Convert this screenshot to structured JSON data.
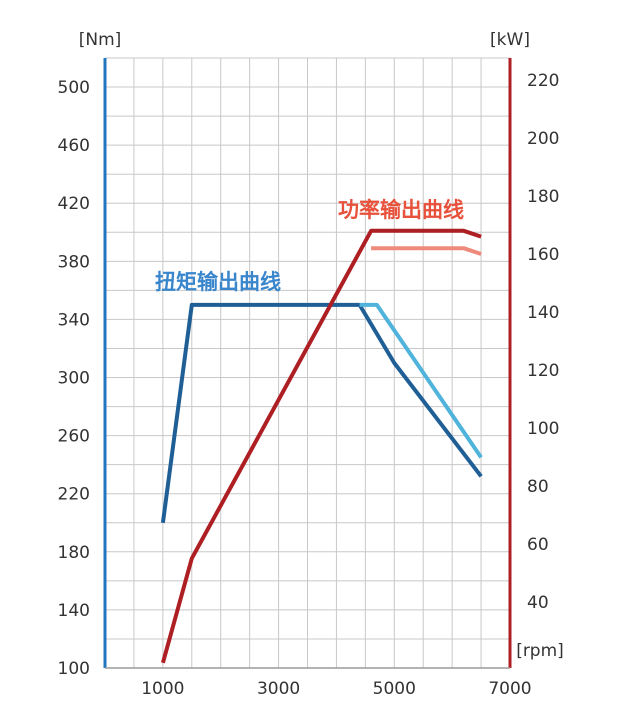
{
  "chart_data": {
    "type": "line",
    "left_axis_unit": "[Nm]",
    "right_axis_unit": "[kW]",
    "x_unit": "[rpm]",
    "x_ticks": [
      "1000",
      "3000",
      "5000",
      "7000"
    ],
    "x_range": [
      0,
      7000
    ],
    "y_left_ticks": [
      "100",
      "140",
      "180",
      "220",
      "260",
      "300",
      "340",
      "380",
      "420",
      "460",
      "500"
    ],
    "y_left_range": [
      100,
      520
    ],
    "y_right_ticks": [
      "40",
      "60",
      "80",
      "100",
      "120",
      "140",
      "160",
      "180",
      "200",
      "220"
    ],
    "y_right_range": [
      17.2,
      227.6
    ],
    "grid": true,
    "annotations": {
      "torque": "扭矩输出曲线",
      "power": "功率输出曲线"
    },
    "series": [
      {
        "axis": "left",
        "color": "#1f5f96",
        "x": [
          1000,
          1500,
          4400,
          5000,
          6500
        ],
        "y": [
          200,
          350,
          350,
          310,
          232
        ]
      },
      {
        "axis": "left",
        "color": "#4fb3dc",
        "x": [
          4400,
          4700,
          6500
        ],
        "y": [
          350,
          350,
          245
        ]
      },
      {
        "axis": "right",
        "color": "#ae1f24",
        "x": [
          1000,
          1500,
          4600,
          6200,
          6500
        ],
        "y": [
          19,
          55,
          168,
          168,
          166
        ]
      },
      {
        "axis": "right",
        "color": "#ee8a7c",
        "x": [
          4600,
          6200,
          6500
        ],
        "y": [
          162,
          162,
          160
        ]
      }
    ],
    "colors": {
      "left_axis": "#2176c0",
      "right_axis": "#ae1f24",
      "grid": "#c8c8c8",
      "torque_label": "#3a86cc",
      "power_label": "#e8513b"
    }
  }
}
